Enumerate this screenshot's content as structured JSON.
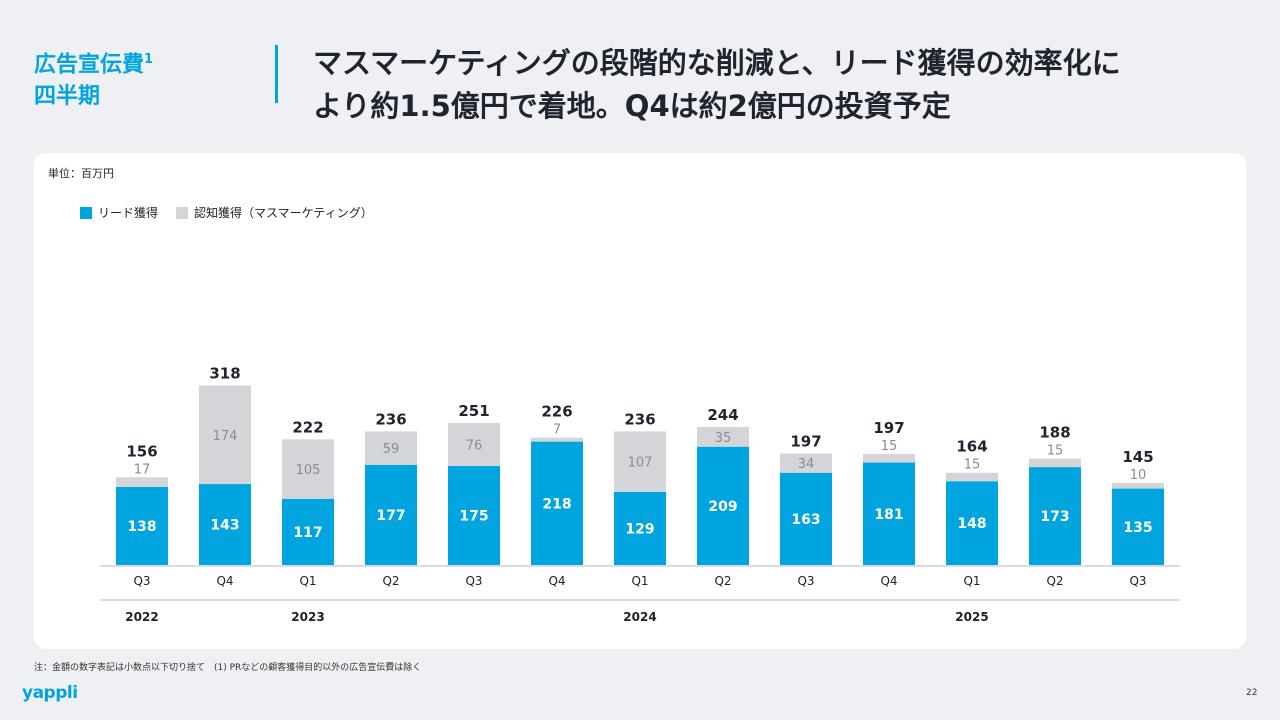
{
  "header": {
    "section_title": "広告宣伝費",
    "section_sup": "1",
    "section_sub": "四半期",
    "headline_line1": "マスマーケティングの段階的な削減と、リード獲得の効率化に",
    "headline_line2": "より約1.5億円で着地。Q4は約2億円の投資予定"
  },
  "chart_data": {
    "type": "bar",
    "stacked": true,
    "unit_label": "単位：百万円",
    "categories": [
      "Q3",
      "Q4",
      "Q1",
      "Q2",
      "Q3",
      "Q4",
      "Q1",
      "Q2",
      "Q3",
      "Q4",
      "Q1",
      "Q2",
      "Q3"
    ],
    "year_labels": [
      {
        "label": "2022",
        "index": 0
      },
      {
        "label": "2023",
        "index": 2
      },
      {
        "label": "2024",
        "index": 6
      },
      {
        "label": "2025",
        "index": 10
      }
    ],
    "totals": [
      156,
      318,
      222,
      236,
      251,
      226,
      236,
      244,
      197,
      197,
      164,
      188,
      145
    ],
    "series": [
      {
        "name": "リード獲得",
        "color": "#00a5e0",
        "values": [
          138,
          143,
          117,
          177,
          175,
          218,
          129,
          209,
          163,
          181,
          148,
          173,
          135
        ]
      },
      {
        "name": "認知獲得（マスマーケティング）",
        "color": "#d4d5d9",
        "values": [
          17,
          174,
          105,
          59,
          76,
          7,
          107,
          35,
          34,
          15,
          15,
          15,
          10
        ]
      }
    ],
    "ylim": [
      0,
      318
    ]
  },
  "footnote": "注：金額の数字表記は小数点以下切り捨て　(1) PRなどの顧客獲得目的以外の広告宣伝費は除く",
  "logo": "yappli",
  "page_number": "22"
}
